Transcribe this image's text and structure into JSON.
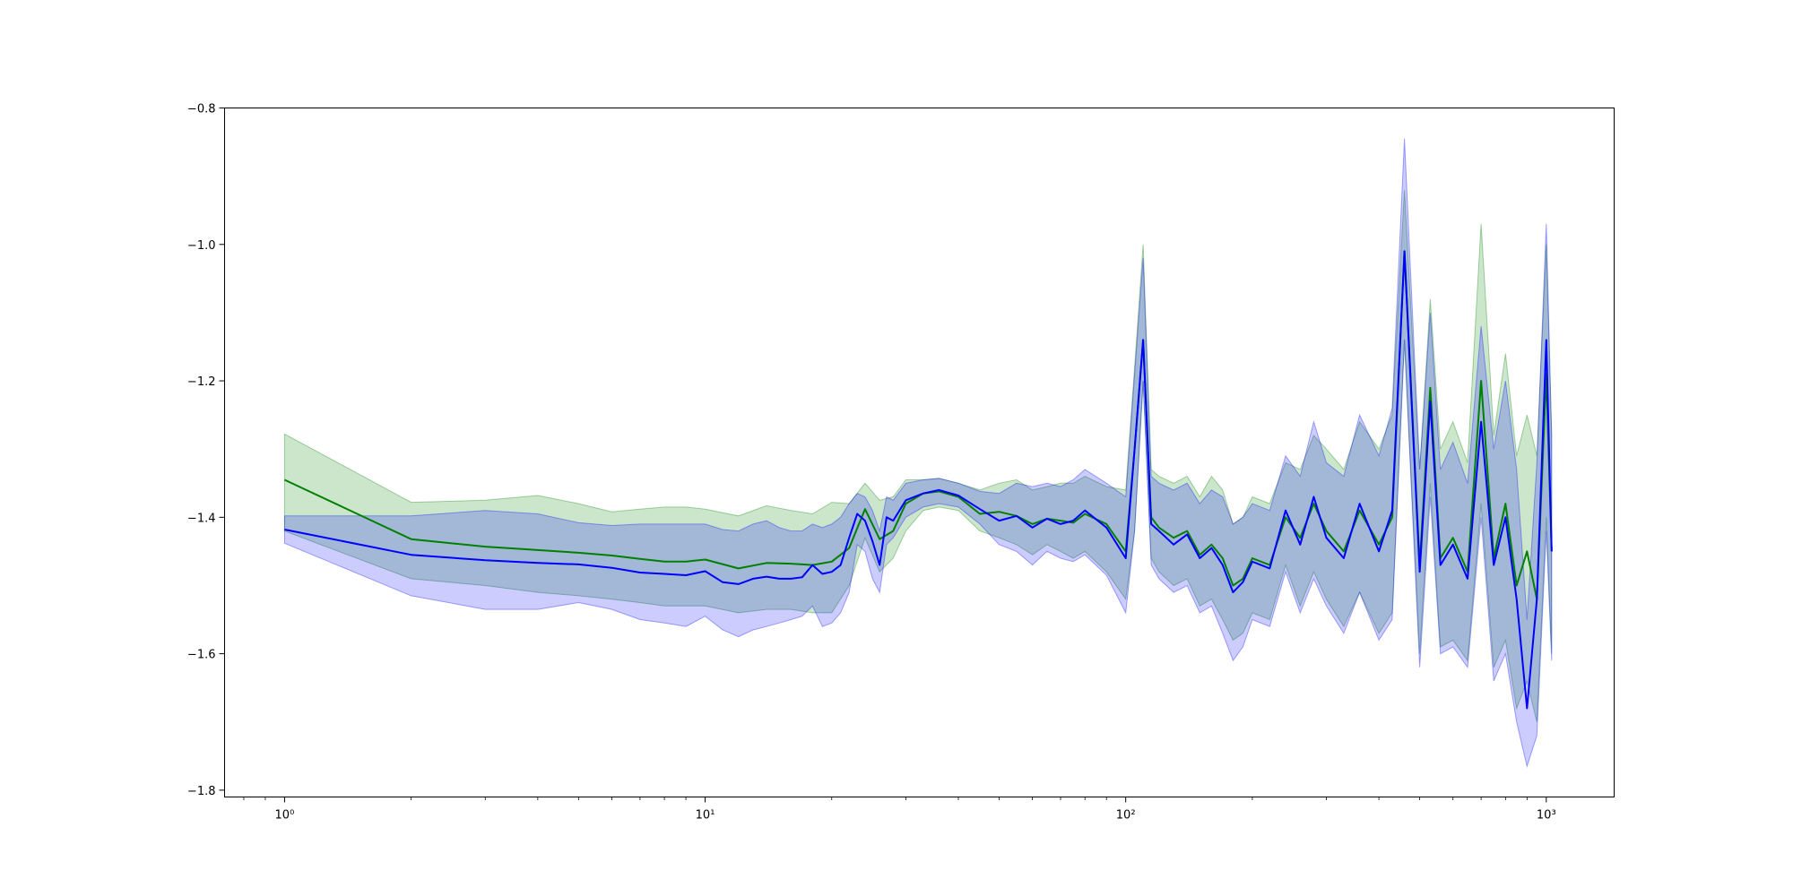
{
  "chart_data": {
    "type": "line",
    "title": "",
    "xlabel": "",
    "ylabel": "",
    "x_scale": "log",
    "xlim": [
      0.72,
      1450
    ],
    "ylim": [
      -1.81,
      -0.8
    ],
    "grid": false,
    "x_ticks": [
      {
        "value": 1,
        "label": "10⁰"
      },
      {
        "value": 10,
        "label": "10¹"
      },
      {
        "value": 100,
        "label": "10²"
      },
      {
        "value": 1000,
        "label": "10³"
      }
    ],
    "y_ticks": [
      {
        "value": -0.8,
        "label": "−0.8"
      },
      {
        "value": -1.0,
        "label": "−1.0"
      },
      {
        "value": -1.2,
        "label": "−1.2"
      },
      {
        "value": -1.4,
        "label": "−1.4"
      },
      {
        "value": -1.6,
        "label": "−1.6"
      },
      {
        "value": -1.8,
        "label": "−1.8"
      }
    ],
    "series": [
      {
        "color": "#008000",
        "band_color": "#008000",
        "band_opacity": 0.2,
        "x": [
          1,
          2,
          3,
          4,
          5,
          6,
          7,
          8,
          9,
          10,
          12,
          14,
          16,
          18,
          20,
          22,
          24,
          26,
          28,
          30,
          33,
          36,
          40,
          45,
          50,
          55,
          60,
          65,
          70,
          75,
          80,
          90,
          100,
          105,
          110,
          115,
          120,
          130,
          140,
          150,
          160,
          170,
          180,
          190,
          200,
          220,
          240,
          260,
          280,
          300,
          330,
          360,
          400,
          430,
          460,
          500,
          530,
          560,
          600,
          650,
          700,
          750,
          800,
          850,
          900,
          950,
          1000,
          1030
        ],
        "y": [
          -1.345,
          -1.432,
          -1.443,
          -1.448,
          -1.452,
          -1.456,
          -1.461,
          -1.465,
          -1.465,
          -1.462,
          -1.475,
          -1.467,
          -1.468,
          -1.47,
          -1.465,
          -1.445,
          -1.388,
          -1.432,
          -1.42,
          -1.38,
          -1.365,
          -1.362,
          -1.37,
          -1.395,
          -1.392,
          -1.398,
          -1.41,
          -1.402,
          -1.405,
          -1.408,
          -1.395,
          -1.41,
          -1.45,
          -1.3,
          -1.14,
          -1.4,
          -1.415,
          -1.43,
          -1.42,
          -1.455,
          -1.44,
          -1.46,
          -1.5,
          -1.49,
          -1.46,
          -1.47,
          -1.4,
          -1.43,
          -1.38,
          -1.42,
          -1.45,
          -1.39,
          -1.44,
          -1.4,
          -1.01,
          -1.47,
          -1.21,
          -1.46,
          -1.43,
          -1.48,
          -1.2,
          -1.46,
          -1.38,
          -1.5,
          -1.45,
          -1.52,
          -1.19,
          -1.45
        ],
        "lower": [
          -1.42,
          -1.49,
          -1.5,
          -1.51,
          -1.515,
          -1.52,
          -1.525,
          -1.53,
          -1.53,
          -1.53,
          -1.54,
          -1.535,
          -1.535,
          -1.54,
          -1.54,
          -1.5,
          -1.43,
          -1.48,
          -1.46,
          -1.42,
          -1.39,
          -1.385,
          -1.39,
          -1.42,
          -1.43,
          -1.44,
          -1.455,
          -1.44,
          -1.45,
          -1.46,
          -1.45,
          -1.48,
          -1.52,
          -1.42,
          -1.2,
          -1.46,
          -1.48,
          -1.5,
          -1.49,
          -1.53,
          -1.52,
          -1.55,
          -1.58,
          -1.57,
          -1.54,
          -1.55,
          -1.47,
          -1.53,
          -1.48,
          -1.52,
          -1.56,
          -1.51,
          -1.57,
          -1.54,
          -1.14,
          -1.6,
          -1.35,
          -1.59,
          -1.58,
          -1.61,
          -1.38,
          -1.62,
          -1.58,
          -1.68,
          -1.64,
          -1.7,
          -1.4,
          -1.6
        ],
        "upper": [
          -1.278,
          -1.378,
          -1.375,
          -1.368,
          -1.38,
          -1.392,
          -1.388,
          -1.385,
          -1.385,
          -1.388,
          -1.398,
          -1.383,
          -1.39,
          -1.395,
          -1.378,
          -1.38,
          -1.35,
          -1.375,
          -1.37,
          -1.345,
          -1.345,
          -1.343,
          -1.35,
          -1.36,
          -1.35,
          -1.345,
          -1.36,
          -1.355,
          -1.35,
          -1.35,
          -1.34,
          -1.355,
          -1.36,
          -1.18,
          -1.0,
          -1.33,
          -1.34,
          -1.35,
          -1.34,
          -1.37,
          -1.34,
          -1.36,
          -1.41,
          -1.4,
          -1.37,
          -1.38,
          -1.32,
          -1.33,
          -1.28,
          -1.3,
          -1.33,
          -1.26,
          -1.3,
          -1.25,
          -0.92,
          -1.33,
          -1.08,
          -1.3,
          -1.26,
          -1.32,
          -0.97,
          -1.28,
          -1.16,
          -1.31,
          -1.25,
          -1.31,
          -1.0,
          -1.28
        ]
      },
      {
        "color": "#0000ff",
        "band_color": "#0000ff",
        "band_opacity": 0.2,
        "x": [
          1,
          2,
          3,
          4,
          5,
          6,
          7,
          8,
          9,
          10,
          11,
          12,
          13,
          14,
          15,
          16,
          17,
          18,
          19,
          20,
          21,
          22,
          23,
          24,
          25,
          26,
          27,
          28,
          30,
          33,
          36,
          40,
          45,
          50,
          55,
          60,
          65,
          70,
          75,
          80,
          90,
          100,
          105,
          110,
          115,
          120,
          130,
          140,
          150,
          160,
          170,
          180,
          190,
          200,
          220,
          240,
          260,
          280,
          300,
          330,
          360,
          400,
          430,
          460,
          500,
          530,
          560,
          600,
          650,
          700,
          750,
          800,
          850,
          900,
          950,
          1000,
          1030
        ],
        "y": [
          -1.418,
          -1.455,
          -1.463,
          -1.467,
          -1.469,
          -1.474,
          -1.481,
          -1.483,
          -1.485,
          -1.479,
          -1.495,
          -1.498,
          -1.49,
          -1.487,
          -1.49,
          -1.49,
          -1.488,
          -1.47,
          -1.483,
          -1.48,
          -1.47,
          -1.43,
          -1.395,
          -1.405,
          -1.435,
          -1.47,
          -1.4,
          -1.405,
          -1.375,
          -1.365,
          -1.36,
          -1.368,
          -1.388,
          -1.405,
          -1.398,
          -1.415,
          -1.402,
          -1.41,
          -1.405,
          -1.39,
          -1.415,
          -1.46,
          -1.3,
          -1.14,
          -1.41,
          -1.42,
          -1.44,
          -1.425,
          -1.46,
          -1.445,
          -1.47,
          -1.51,
          -1.495,
          -1.465,
          -1.475,
          -1.39,
          -1.44,
          -1.37,
          -1.43,
          -1.46,
          -1.38,
          -1.45,
          -1.39,
          -1.01,
          -1.48,
          -1.23,
          -1.47,
          -1.44,
          -1.49,
          -1.26,
          -1.47,
          -1.4,
          -1.52,
          -1.68,
          -1.52,
          -1.14,
          -1.45
        ],
        "lower": [
          -1.438,
          -1.515,
          -1.535,
          -1.535,
          -1.525,
          -1.535,
          -1.55,
          -1.555,
          -1.56,
          -1.545,
          -1.565,
          -1.575,
          -1.565,
          -1.56,
          -1.555,
          -1.55,
          -1.545,
          -1.53,
          -1.56,
          -1.555,
          -1.54,
          -1.51,
          -1.44,
          -1.45,
          -1.49,
          -1.51,
          -1.44,
          -1.43,
          -1.4,
          -1.385,
          -1.38,
          -1.385,
          -1.41,
          -1.44,
          -1.45,
          -1.47,
          -1.45,
          -1.46,
          -1.465,
          -1.455,
          -1.485,
          -1.54,
          -1.42,
          -1.2,
          -1.47,
          -1.49,
          -1.51,
          -1.5,
          -1.54,
          -1.53,
          -1.57,
          -1.61,
          -1.59,
          -1.55,
          -1.56,
          -1.48,
          -1.54,
          -1.49,
          -1.53,
          -1.57,
          -1.51,
          -1.58,
          -1.55,
          -1.14,
          -1.62,
          -1.37,
          -1.6,
          -1.59,
          -1.62,
          -1.4,
          -1.64,
          -1.6,
          -1.7,
          -1.765,
          -1.72,
          -1.42,
          -1.61
        ],
        "upper": [
          -1.398,
          -1.398,
          -1.39,
          -1.395,
          -1.408,
          -1.412,
          -1.41,
          -1.41,
          -1.41,
          -1.41,
          -1.418,
          -1.42,
          -1.41,
          -1.405,
          -1.415,
          -1.42,
          -1.42,
          -1.41,
          -1.415,
          -1.41,
          -1.4,
          -1.38,
          -1.365,
          -1.37,
          -1.39,
          -1.42,
          -1.37,
          -1.375,
          -1.35,
          -1.345,
          -1.343,
          -1.35,
          -1.362,
          -1.365,
          -1.35,
          -1.355,
          -1.35,
          -1.355,
          -1.345,
          -1.33,
          -1.35,
          -1.37,
          -1.19,
          -1.02,
          -1.34,
          -1.35,
          -1.36,
          -1.35,
          -1.38,
          -1.36,
          -1.37,
          -1.41,
          -1.4,
          -1.38,
          -1.39,
          -1.31,
          -1.34,
          -1.26,
          -1.32,
          -1.34,
          -1.25,
          -1.31,
          -1.24,
          -0.845,
          -1.33,
          -1.1,
          -1.33,
          -1.29,
          -1.35,
          -1.12,
          -1.3,
          -1.2,
          -1.33,
          -1.55,
          -1.32,
          -0.97,
          -1.28
        ]
      }
    ]
  }
}
